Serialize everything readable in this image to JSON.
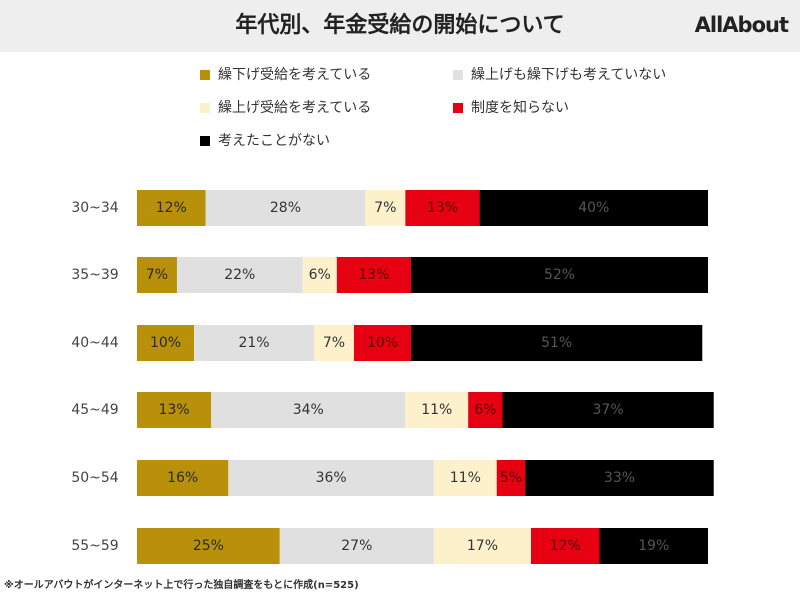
{
  "chart_data": {
    "type": "stacked-bar-horizontal",
    "title": "年代別、年金受給の開始について",
    "logo": "AllAbout",
    "note": "※オールアバウトがインターネット上で行った独自調査をもとに作成(n=525)",
    "categories": [
      "30~34",
      "35~39",
      "40~44",
      "45~49",
      "50~54",
      "55~59"
    ],
    "xlim": [
      0,
      100
    ],
    "series": [
      {
        "name": "繰下げ受給を考えている",
        "color": "#b8900a",
        "values": [
          12,
          7,
          10,
          13,
          16,
          25
        ],
        "value_labels": [
          "12%",
          "7%",
          "10%",
          "13%",
          "16%",
          "25%"
        ]
      },
      {
        "name": "繰上げも繰下げも考えていない",
        "color": "#e0e0e0",
        "values": [
          28,
          22,
          21,
          34,
          36,
          27
        ],
        "value_labels": [
          "28%",
          "22%",
          "21%",
          "34%",
          "36%",
          "27%"
        ]
      },
      {
        "name": "繰上げ受給を考えている",
        "color": "#fdf1cc",
        "values": [
          7,
          6,
          7,
          11,
          11,
          17
        ],
        "value_labels": [
          "7%",
          "6%",
          "7%",
          "11%",
          "11%",
          "17%"
        ]
      },
      {
        "name": "制度を知らない",
        "color": "#e60012",
        "values": [
          13,
          13,
          10,
          6,
          5,
          12
        ],
        "value_labels": [
          "13%",
          "13%",
          "10%",
          "6%",
          "5%",
          "12%"
        ]
      },
      {
        "name": "考えたことがない",
        "color": "#000000",
        "values": [
          40,
          52,
          51,
          37,
          33,
          19
        ],
        "value_labels": [
          "40%",
          "52%",
          "51%",
          "37%",
          "33%",
          "19%"
        ]
      }
    ]
  }
}
